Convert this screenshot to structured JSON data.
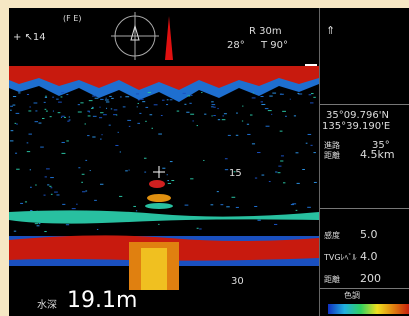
{
  "top_bar": {
    "heading": "+ ↖14",
    "mode": "(F E)",
    "range": "R 30m",
    "angle": "28°",
    "tilt": "T 90°"
  },
  "echogram": {
    "depth_marks": [
      "15",
      "30"
    ]
  },
  "bottom_bar": {
    "depth_label": "水深",
    "depth_value": "19.1m"
  },
  "side_panel": {
    "position": [
      "35°09.796'N",
      "135°39.190'E"
    ],
    "rows": [
      {
        "label": "進路",
        "value": "35°"
      },
      {
        "label": "距離",
        "value": "4.5km"
      },
      {
        "label": "感度",
        "value": "5.0"
      },
      {
        "label": "TVGﾚﾍﾞﾙ",
        "value": "4.0"
      },
      {
        "label": "距離",
        "value": "200"
      }
    ],
    "color_label": "色調"
  }
}
